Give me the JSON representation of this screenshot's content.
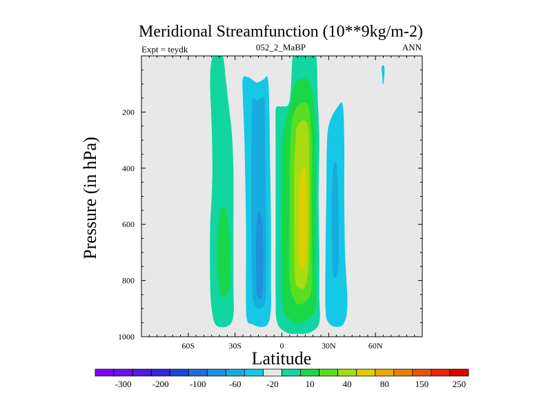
{
  "chart_data": {
    "type": "contour",
    "title": "Meridional Streamfunction (10**9kg/m-2)",
    "left_string": "Expt = teydk",
    "center_string": "052_2_MaBP",
    "right_string": "ANN",
    "xlabel": "Latitude",
    "ylabel": "Pressure (in hPa)",
    "xlim": [
      -90,
      90
    ],
    "ylim": [
      1000,
      0
    ],
    "x_ticks": [
      {
        "value": -60,
        "label": "60S"
      },
      {
        "value": -30,
        "label": "30S"
      },
      {
        "value": 0,
        "label": "0"
      },
      {
        "value": 30,
        "label": "30N"
      },
      {
        "value": 60,
        "label": "60N"
      }
    ],
    "y_ticks": [
      {
        "value": 200,
        "label": "200"
      },
      {
        "value": 400,
        "label": "400"
      },
      {
        "value": 600,
        "label": "600"
      },
      {
        "value": 800,
        "label": "800"
      },
      {
        "value": 1000,
        "label": "1000"
      }
    ],
    "colorbar": {
      "colors": [
        "#8000ff",
        "#6a10f0",
        "#4b1ce6",
        "#3328dc",
        "#1f46d8",
        "#1d70d8",
        "#1e90dc",
        "#17abe0",
        "#14c8e6",
        "#e8e8e8",
        "#12d6a0",
        "#18d848",
        "#58de20",
        "#a8dc10",
        "#dcd000",
        "#e6ac00",
        "#e68000",
        "#e65400",
        "#e62800",
        "#e00000"
      ],
      "labels": [
        "-300",
        "-200",
        "-100",
        "-60",
        "-20",
        "10",
        "40",
        "80",
        "150",
        "250"
      ]
    },
    "cells": [
      {
        "name": "Southern Hemisphere outer positive cell",
        "lat_range": [
          -48,
          -30
        ],
        "p_range": [
          0,
          960
        ],
        "levels": [
          {
            "value": 10,
            "color": "#12d6a0",
            "outline": [
              [
                -38,
                0
              ],
              [
                -36,
                80
              ],
              [
                -34,
                180
              ],
              [
                -32,
                280
              ],
              [
                -31,
                420
              ],
              [
                -31,
                600
              ],
              [
                -31,
                820
              ],
              [
                -31,
                920
              ],
              [
                -34,
                960
              ],
              [
                -42,
                960
              ],
              [
                -45,
                900
              ],
              [
                -46,
                800
              ],
              [
                -46,
                620
              ],
              [
                -45,
                500
              ],
              [
                -44.5,
                400
              ],
              [
                -45,
                250
              ],
              [
                -46,
                80
              ],
              [
                -44,
                0
              ]
            ]
          },
          {
            "value": 40,
            "color": "#18d848",
            "outline": [
              [
                -36,
                545
              ],
              [
                -34,
                620
              ],
              [
                -33,
                740
              ],
              [
                -34,
                830
              ],
              [
                -37,
                860
              ],
              [
                -40,
                830
              ],
              [
                -41,
                720
              ],
              [
                -40.5,
                600
              ],
              [
                -39,
                545
              ]
            ]
          }
        ]
      },
      {
        "name": "Southern Hemisphere negative cell",
        "lat_range": [
          -25,
          -2
        ],
        "p_range": [
          75,
          980
        ],
        "levels": [
          {
            "value": -20,
            "color": "#14c8e6",
            "outline": [
              [
                -25,
                80
              ],
              [
                -22,
                75
              ],
              [
                -19,
                85
              ],
              [
                -16,
                95
              ],
              [
                -12,
                85
              ],
              [
                -9,
                80
              ],
              [
                -8,
                200
              ],
              [
                -7.5,
                400
              ],
              [
                -7,
                600
              ],
              [
                -7,
                800
              ],
              [
                -7,
                900
              ],
              [
                -9,
                955
              ],
              [
                -14,
                965
              ],
              [
                -19,
                955
              ],
              [
                -22,
                945
              ],
              [
                -23,
                880
              ],
              [
                -23,
                600
              ],
              [
                -24,
                300
              ],
              [
                -25,
                150
              ]
            ]
          },
          {
            "value": -60,
            "color": "#17abe0",
            "outline": [
              [
                -19,
                170
              ],
              [
                -16,
                160
              ],
              [
                -13,
                150
              ],
              [
                -11,
                170
              ],
              [
                -10.5,
                400
              ],
              [
                -10,
                600
              ],
              [
                -10,
                800
              ],
              [
                -11,
                880
              ],
              [
                -14,
                900
              ],
              [
                -17,
                890
              ],
              [
                -19,
                830
              ],
              [
                -19.5,
                600
              ],
              [
                -19.5,
                400
              ]
            ]
          },
          {
            "value": -100,
            "color": "#1e90dc",
            "outline": [
              [
                -15,
                560
              ],
              [
                -13,
                580
              ],
              [
                -12,
                660
              ],
              [
                -12,
                800
              ],
              [
                -13,
                860
              ],
              [
                -16,
                850
              ],
              [
                -16.5,
                760
              ],
              [
                -16.5,
                640
              ]
            ]
          }
        ]
      },
      {
        "name": "Southern Hadley / tropical positive cell",
        "lat_range": [
          -4,
          25
        ],
        "p_range": [
          0,
          990
        ],
        "levels": [
          {
            "value": 10,
            "color": "#12d6a0",
            "outline": [
              [
                7,
                0
              ],
              [
                10,
                0
              ],
              [
                18,
                0
              ],
              [
                22,
                0
              ],
              [
                23,
                150
              ],
              [
                24,
                300
              ],
              [
                23.5,
                500
              ],
              [
                24,
                700
              ],
              [
                24,
                850
              ],
              [
                24,
                950
              ],
              [
                18,
                985
              ],
              [
                10,
                990
              ],
              [
                3,
                985
              ],
              [
                -3,
                950
              ],
              [
                -4,
                850
              ],
              [
                -4,
                600
              ],
              [
                -4,
                300
              ],
              [
                -4,
                200
              ],
              [
                -3,
                180
              ],
              [
                0,
                180
              ],
              [
                5,
                160
              ]
            ]
          },
          {
            "value": 40,
            "color": "#18d848",
            "outline": [
              [
                8,
                100
              ],
              [
                14,
                80
              ],
              [
                18,
                100
              ],
              [
                21,
                200
              ],
              [
                22,
                400
              ],
              [
                21.5,
                600
              ],
              [
                22,
                800
              ],
              [
                21.5,
                900
              ],
              [
                16,
                940
              ],
              [
                10,
                955
              ],
              [
                6,
                940
              ],
              [
                1,
                900
              ],
              [
                0,
                700
              ],
              [
                0,
                500
              ],
              [
                0.5,
                300
              ],
              [
                3,
                220
              ],
              [
                6,
                160
              ]
            ]
          },
          {
            "value": 80,
            "color": "#58de20",
            "outline": [
              [
                8,
                200
              ],
              [
                12,
                170
              ],
              [
                17,
                180
              ],
              [
                19,
                300
              ],
              [
                19,
                500
              ],
              [
                19,
                700
              ],
              [
                19,
                830
              ],
              [
                16,
                870
              ],
              [
                11,
                885
              ],
              [
                8,
                870
              ],
              [
                5,
                800
              ],
              [
                5,
                600
              ],
              [
                5,
                400
              ],
              [
                6,
                260
              ]
            ]
          },
          {
            "value": 150,
            "color": "#a8dc10",
            "outline": [
              [
                10,
                250
              ],
              [
                14,
                230
              ],
              [
                17,
                260
              ],
              [
                17.5,
                400
              ],
              [
                17.5,
                600
              ],
              [
                17,
                750
              ],
              [
                15,
                820
              ],
              [
                11,
                825
              ],
              [
                8.5,
                790
              ],
              [
                8,
                600
              ],
              [
                8,
                400
              ],
              [
                9,
                280
              ]
            ]
          },
          {
            "value": 250,
            "color": "#dcd000",
            "outline": [
              [
                12,
                420
              ],
              [
                15,
                400
              ],
              [
                16,
                480
              ],
              [
                16,
                620
              ],
              [
                15.5,
                720
              ],
              [
                13.5,
                760
              ],
              [
                11,
                730
              ],
              [
                10.5,
                600
              ],
              [
                11,
                480
              ]
            ]
          }
        ]
      },
      {
        "name": "Northern Hemisphere negative cell",
        "lat_range": [
          28,
          44
        ],
        "p_range": [
          180,
          965
        ],
        "levels": [
          {
            "value": -20,
            "color": "#14c8e6",
            "outline": [
              [
                36,
                180
              ],
              [
                39,
                175
              ],
              [
                40,
                300
              ],
              [
                40,
                500
              ],
              [
                40.5,
                700
              ],
              [
                42,
                880
              ],
              [
                40,
                950
              ],
              [
                35,
                965
              ],
              [
                30,
                950
              ],
              [
                28,
                900
              ],
              [
                28,
                700
              ],
              [
                28.5,
                500
              ],
              [
                29,
                300
              ],
              [
                31,
                230
              ]
            ]
          },
          {
            "value": -60,
            "color": "#17abe0",
            "outline": [
              [
                33,
                400
              ],
              [
                35,
                380
              ],
              [
                36,
                480
              ],
              [
                36.5,
                650
              ],
              [
                36,
                760
              ],
              [
                34,
                790
              ],
              [
                32.5,
                760
              ],
              [
                32,
                650
              ],
              [
                32,
                500
              ]
            ]
          }
        ]
      },
      {
        "name": "Polar small cell",
        "lat_range": [
          64,
          66
        ],
        "p_range": [
          40,
          100
        ],
        "levels": [
          {
            "value": -20,
            "color": "#14c8e6",
            "outline": [
              [
                64,
                40
              ],
              [
                65.5,
                35
              ],
              [
                65.8,
                60
              ],
              [
                65.2,
                95
              ],
              [
                64.6,
                100
              ],
              [
                64.3,
                70
              ]
            ]
          }
        ]
      }
    ]
  }
}
